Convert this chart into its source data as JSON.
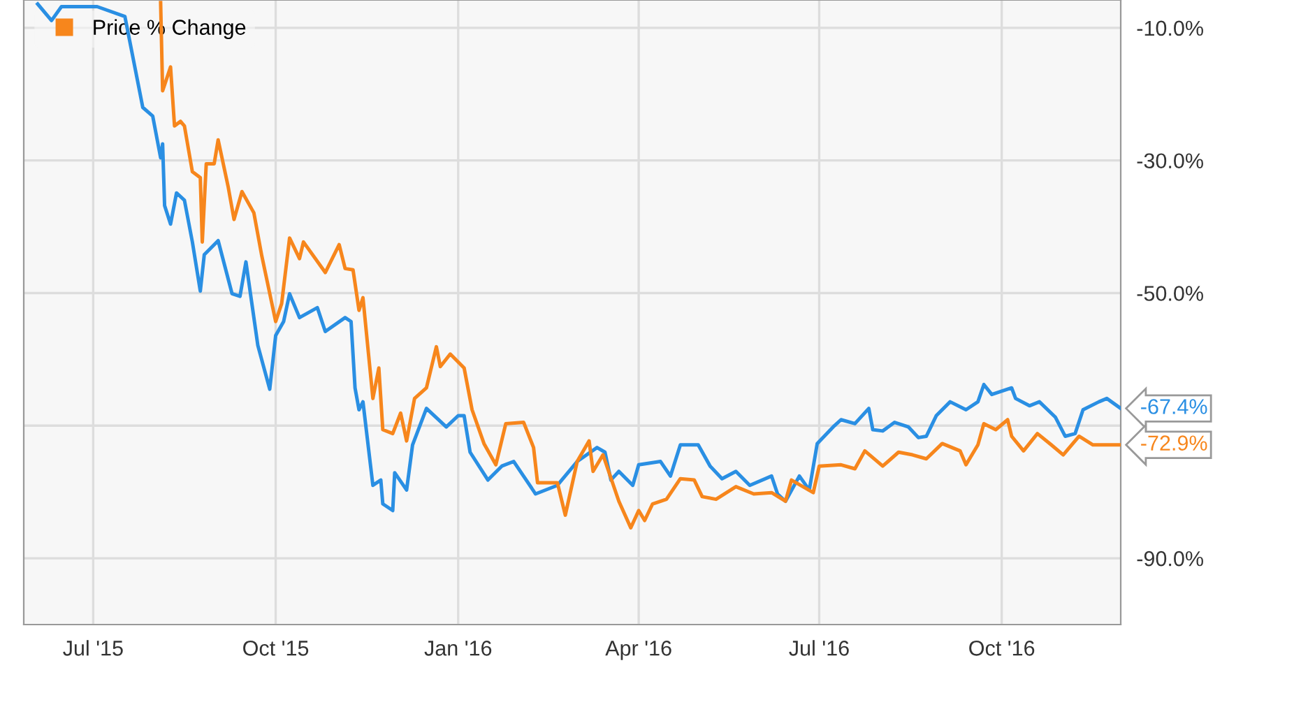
{
  "chart_data": {
    "type": "line",
    "xlim": [
      "2015-05-27",
      "2016-11-30"
    ],
    "xticks": [
      {
        "value": "2015-07-01",
        "label": "Jul '15"
      },
      {
        "value": "2015-10-01",
        "label": "Oct '15"
      },
      {
        "value": "2016-01-01",
        "label": "Jan '16"
      },
      {
        "value": "2016-04-01",
        "label": "Apr '16"
      },
      {
        "value": "2016-07-01",
        "label": "Jul '16"
      },
      {
        "value": "2016-10-01",
        "label": "Oct '16"
      }
    ],
    "ylim": [
      -100,
      -5.8
    ],
    "yticks": [
      {
        "value": -90,
        "label": "-90.0%"
      },
      {
        "value": -70,
        "label": null
      },
      {
        "value": -50,
        "label": "-50.0%"
      },
      {
        "value": -30,
        "label": "-30.0%"
      },
      {
        "value": -10,
        "label": "-10.0%"
      }
    ],
    "grid": true,
    "legend": "top left",
    "series": [
      {
        "color": "#2a8fe3",
        "x": [
          "2015-06-03",
          "2015-06-10",
          "2015-06-15",
          "2015-07-03",
          "2015-07-17",
          "2015-07-26",
          "2015-07-31",
          "2015-08-04",
          "2015-08-05",
          "2015-08-06",
          "2015-08-09",
          "2015-08-12",
          "2015-08-16",
          "2015-08-20",
          "2015-08-24",
          "2015-08-26",
          "2015-09-02",
          "2015-09-09",
          "2015-09-13",
          "2015-09-16",
          "2015-09-22",
          "2015-09-28",
          "2015-10-01",
          "2015-10-05",
          "2015-10-08",
          "2015-10-13",
          "2015-10-22",
          "2015-10-26",
          "2015-11-05",
          "2015-11-08",
          "2015-11-10",
          "2015-11-12",
          "2015-11-14",
          "2015-11-19",
          "2015-11-23",
          "2015-11-24",
          "2015-11-29",
          "2015-11-30",
          "2015-12-06",
          "2015-12-09",
          "2015-12-16",
          "2015-12-26",
          "2016-01-01",
          "2016-01-04",
          "2016-01-07",
          "2016-01-16",
          "2016-01-23",
          "2016-01-29",
          "2016-02-09",
          "2016-02-20",
          "2016-03-01",
          "2016-03-11",
          "2016-03-15",
          "2016-03-18",
          "2016-03-22",
          "2016-03-29",
          "2016-04-01",
          "2016-04-12",
          "2016-04-17",
          "2016-04-22",
          "2016-05-01",
          "2016-05-07",
          "2016-05-13",
          "2016-05-20",
          "2016-05-27",
          "2016-06-07",
          "2016-06-10",
          "2016-06-14",
          "2016-06-21",
          "2016-06-26",
          "2016-06-30",
          "2016-07-08",
          "2016-07-12",
          "2016-07-19",
          "2016-07-26",
          "2016-07-28",
          "2016-08-02",
          "2016-08-08",
          "2016-08-15",
          "2016-08-20",
          "2016-08-24",
          "2016-08-29",
          "2016-09-05",
          "2016-09-13",
          "2016-09-19",
          "2016-09-22",
          "2016-09-26",
          "2016-10-06",
          "2016-10-08",
          "2016-10-15",
          "2016-10-20",
          "2016-10-28",
          "2016-11-02",
          "2016-11-07",
          "2016-11-11",
          "2016-11-19",
          "2016-11-23",
          "2016-11-30"
        ],
        "values": [
          -6.4,
          -8.9,
          -6.8,
          -6.8,
          -8.3,
          -22.0,
          -23.3,
          -29.6,
          -27.5,
          -36.8,
          -39.6,
          -34.9,
          -36.0,
          -42.3,
          -49.7,
          -44.2,
          -42.1,
          -50.1,
          -50.5,
          -45.3,
          -57.9,
          -64.5,
          -56.4,
          -54.3,
          -50.1,
          -53.7,
          -52.2,
          -55.8,
          -53.7,
          -54.3,
          -64.3,
          -67.6,
          -66.4,
          -79.0,
          -78.2,
          -81.8,
          -82.8,
          -77.1,
          -79.7,
          -72.9,
          -67.4,
          -70.2,
          -68.5,
          -68.5,
          -74.0,
          -78.2,
          -76.1,
          -75.4,
          -80.3,
          -79.0,
          -75.4,
          -73.3,
          -74.0,
          -78.2,
          -76.9,
          -79.0,
          -75.9,
          -75.4,
          -77.6,
          -72.9,
          -72.9,
          -76.1,
          -78.0,
          -76.9,
          -79.0,
          -77.6,
          -80.3,
          -81.4,
          -77.6,
          -79.7,
          -72.7,
          -70.2,
          -69.1,
          -69.7,
          -67.4,
          -70.6,
          -70.8,
          -69.5,
          -70.2,
          -71.8,
          -71.6,
          -68.5,
          -66.4,
          -67.6,
          -66.4,
          -63.8,
          -65.3,
          -64.3,
          -65.9,
          -67.0,
          -66.4,
          -68.7,
          -71.6,
          -71.2,
          -67.6,
          -66.4,
          -65.9,
          -67.4
        ]
      },
      {
        "name": "Price % Change",
        "color": "#f7861c",
        "x": [
          "2015-08-04",
          "2015-08-05",
          "2015-08-09",
          "2015-08-11",
          "2015-08-14",
          "2015-08-16",
          "2015-08-20",
          "2015-08-24",
          "2015-08-25",
          "2015-08-27",
          "2015-08-31",
          "2015-09-02",
          "2015-09-07",
          "2015-09-10",
          "2015-09-14",
          "2015-09-20",
          "2015-09-24",
          "2015-10-01",
          "2015-10-04",
          "2015-10-08",
          "2015-10-13",
          "2015-10-15",
          "2015-10-26",
          "2015-11-02",
          "2015-11-05",
          "2015-11-09",
          "2015-11-12",
          "2015-11-14",
          "2015-11-19",
          "2015-11-22",
          "2015-11-24",
          "2015-11-29",
          "2015-12-03",
          "2015-12-06",
          "2015-12-10",
          "2015-12-16",
          "2015-12-21",
          "2015-12-23",
          "2015-12-28",
          "2016-01-04",
          "2016-01-08",
          "2016-01-14",
          "2016-01-20",
          "2016-01-25",
          "2016-02-03",
          "2016-02-08",
          "2016-02-10",
          "2016-02-20",
          "2016-02-24",
          "2016-03-01",
          "2016-03-07",
          "2016-03-09",
          "2016-03-14",
          "2016-03-22",
          "2016-03-28",
          "2016-04-01",
          "2016-04-04",
          "2016-04-08",
          "2016-04-15",
          "2016-04-22",
          "2016-04-29",
          "2016-05-03",
          "2016-05-10",
          "2016-05-20",
          "2016-05-29",
          "2016-06-07",
          "2016-06-14",
          "2016-06-17",
          "2016-06-28",
          "2016-07-01",
          "2016-07-12",
          "2016-07-19",
          "2016-07-24",
          "2016-08-02",
          "2016-08-10",
          "2016-08-17",
          "2016-08-24",
          "2016-09-01",
          "2016-09-10",
          "2016-09-13",
          "2016-09-19",
          "2016-09-22",
          "2016-09-28",
          "2016-10-04",
          "2016-10-06",
          "2016-10-12",
          "2016-10-19",
          "2016-10-26",
          "2016-11-01",
          "2016-11-09",
          "2016-11-16",
          "2016-11-30"
        ],
        "values": [
          -6.2,
          -19.5,
          -15.9,
          -24.8,
          -24.1,
          -24.8,
          -31.7,
          -32.6,
          -42.3,
          -30.5,
          -30.5,
          -26.9,
          -33.9,
          -38.9,
          -34.7,
          -37.9,
          -44.4,
          -54.3,
          -51.6,
          -41.7,
          -44.8,
          -42.3,
          -46.9,
          -42.7,
          -46.3,
          -46.5,
          -52.6,
          -50.7,
          -65.9,
          -61.3,
          -70.6,
          -71.2,
          -68.1,
          -72.3,
          -65.9,
          -64.3,
          -58.1,
          -61.1,
          -59.2,
          -61.3,
          -67.6,
          -72.7,
          -75.9,
          -69.7,
          -69.5,
          -73.3,
          -78.6,
          -78.6,
          -83.5,
          -75.4,
          -72.3,
          -76.9,
          -74.4,
          -81.4,
          -85.4,
          -82.8,
          -84.3,
          -81.8,
          -81.1,
          -78.0,
          -78.2,
          -80.7,
          -81.1,
          -79.2,
          -80.3,
          -80.1,
          -81.4,
          -78.2,
          -80.1,
          -76.1,
          -75.9,
          -76.5,
          -73.8,
          -76.1,
          -74.0,
          -74.4,
          -75.0,
          -72.7,
          -73.8,
          -75.9,
          -72.9,
          -69.7,
          -70.6,
          -69.1,
          -71.6,
          -73.8,
          -71.2,
          -72.9,
          -74.4,
          -71.6,
          -72.9,
          -72.9
        ]
      }
    ],
    "annotations": [
      {
        "text": "-67.4%",
        "x": "2016-11-30",
        "y": -67.4
      },
      {
        "text": "-72.9%",
        "x": "2016-11-30",
        "y": -72.9
      }
    ]
  }
}
